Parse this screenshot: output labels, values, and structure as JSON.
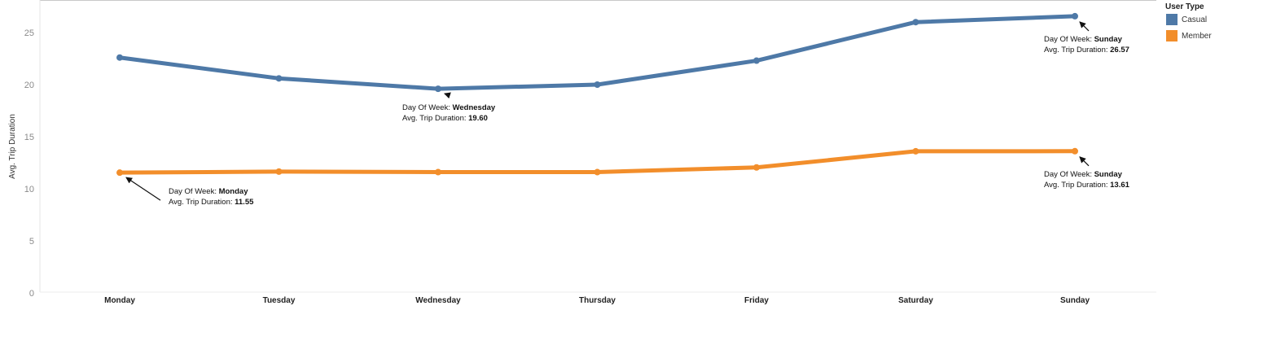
{
  "chart_data": {
    "type": "line",
    "categories": [
      "Monday",
      "Tuesday",
      "Wednesday",
      "Thursday",
      "Friday",
      "Saturday",
      "Sunday"
    ],
    "series": [
      {
        "name": "Casual",
        "color": "#4e79a7",
        "values": [
          22.6,
          20.6,
          19.6,
          20.0,
          22.3,
          26.0,
          26.57
        ]
      },
      {
        "name": "Member",
        "color": "#f28e2b",
        "values": [
          11.55,
          11.65,
          11.6,
          11.6,
          12.05,
          13.6,
          13.61
        ]
      }
    ],
    "ylabel": "Avg. Trip Duration",
    "xlabel": "",
    "ylim": [
      0,
      27.5
    ],
    "yticks": [
      0,
      5,
      10,
      15,
      20,
      25
    ],
    "grid": false,
    "legend": {
      "title": "User Type",
      "position": "top-right",
      "items": [
        "Casual",
        "Member"
      ]
    },
    "annotations": [
      {
        "series": "Casual",
        "category": "Wednesday",
        "label1": "Day Of Week: ",
        "value1": "Wednesday",
        "label2": "Avg. Trip Duration: ",
        "value2": "19.60",
        "placement": "below-right"
      },
      {
        "series": "Casual",
        "category": "Sunday",
        "label1": "Day Of Week: ",
        "value1": "Sunday",
        "label2": "Avg. Trip Duration: ",
        "value2": "26.57",
        "placement": "below-left"
      },
      {
        "series": "Member",
        "category": "Monday",
        "label1": "Day Of Week: ",
        "value1": "Monday",
        "label2": "Avg. Trip Duration: ",
        "value2": "11.55",
        "placement": "below-right"
      },
      {
        "series": "Member",
        "category": "Sunday",
        "label1": "Day Of Week: ",
        "value1": "Sunday",
        "label2": "Avg. Trip Duration: ",
        "value2": "13.61",
        "placement": "below-left"
      }
    ]
  }
}
